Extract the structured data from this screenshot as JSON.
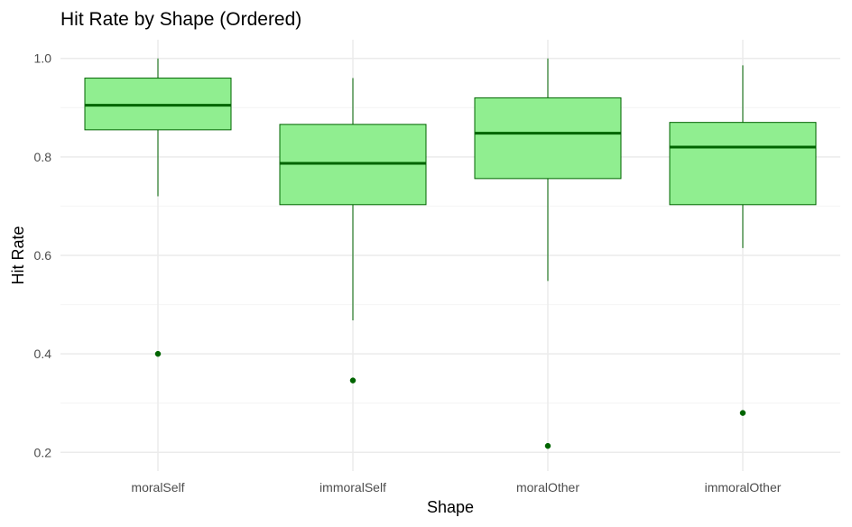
{
  "chart_data": {
    "type": "boxplot",
    "title": "Hit Rate by Shape (Ordered)",
    "xlabel": "Shape",
    "ylabel": "Hit Rate",
    "categories": [
      "moralSelf",
      "immoralSelf",
      "moralOther",
      "immoralOther"
    ],
    "ylim": [
      0.162,
      1.038
    ],
    "yticks": [
      0.2,
      0.4,
      0.6,
      0.8,
      1.0
    ],
    "ytick_labels": [
      "0.2",
      "0.4",
      "0.6",
      "0.8",
      "1.0"
    ],
    "grid": true,
    "boxes": [
      {
        "category": "moralSelf",
        "whisker_low": 0.72,
        "q1": 0.855,
        "median": 0.905,
        "q3": 0.96,
        "whisker_high": 1.0,
        "outliers": [
          0.4
        ]
      },
      {
        "category": "immoralSelf",
        "whisker_low": 0.468,
        "q1": 0.703,
        "median": 0.787,
        "q3": 0.866,
        "whisker_high": 0.96,
        "outliers": [
          0.346
        ]
      },
      {
        "category": "moralOther",
        "whisker_low": 0.548,
        "q1": 0.756,
        "median": 0.848,
        "q3": 0.92,
        "whisker_high": 1.0,
        "outliers": [
          0.213
        ]
      },
      {
        "category": "immoralOther",
        "whisker_low": 0.615,
        "q1": 0.703,
        "median": 0.82,
        "q3": 0.87,
        "whisker_high": 0.986,
        "outliers": [
          0.28
        ]
      }
    ],
    "colors": {
      "box_fill": "#90ee90",
      "box_stroke": "#006400",
      "median": "#006400",
      "outlier": "#006400",
      "grid_major": "#ebebeb",
      "grid_minor": "#f4f4f4"
    }
  }
}
